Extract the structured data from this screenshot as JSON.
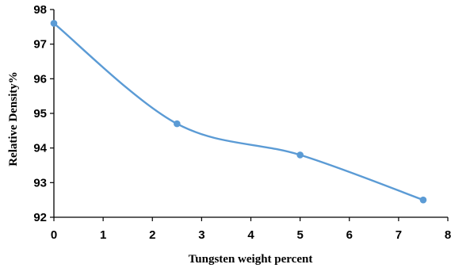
{
  "chart_data": {
    "type": "line",
    "smooth": true,
    "title": "",
    "xlabel": "Tungsten weight percent",
    "ylabel": "Relative Density%",
    "x": [
      0,
      2.5,
      5,
      7.5
    ],
    "series": [
      {
        "values": [
          97.6,
          94.7,
          93.8,
          92.5
        ],
        "color": "#5b9bd5"
      }
    ],
    "xlim": [
      0,
      8
    ],
    "ylim": [
      92,
      98
    ],
    "xticks": [
      "0",
      "1",
      "2",
      "3",
      "4",
      "5",
      "6",
      "7",
      "8"
    ],
    "yticks": [
      "92",
      "93",
      "94",
      "95",
      "96",
      "97",
      "98"
    ],
    "grid": false,
    "legend": "none"
  }
}
